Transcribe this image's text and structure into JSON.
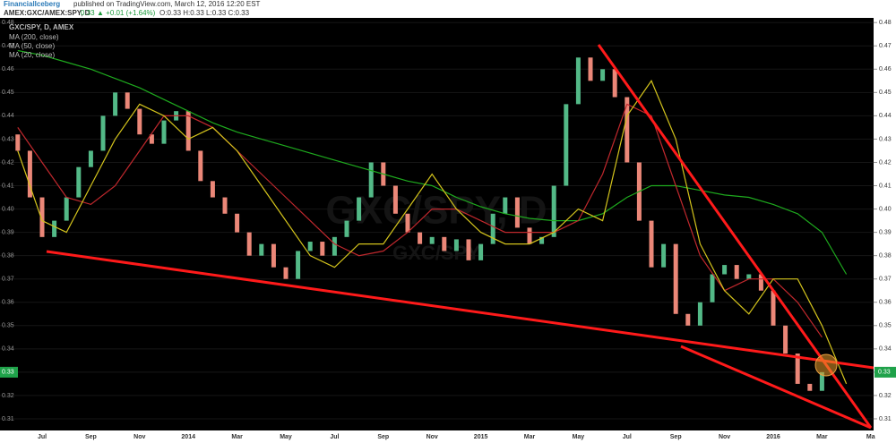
{
  "header": {
    "author": "FinancialIceberg",
    "published": "published on TradingView.com, March 12, 2016 12:20 EST",
    "symbol": "AMEX:GXC/AMEX:SPY, D",
    "last": "0.33",
    "change": "▲ +0.01 (+1.64%)",
    "ohlc": "O:0.33 H:0.33 L:0.33 C:0.33"
  },
  "chart_data": {
    "type": "candlestick",
    "title": "GXC/SPY, D, AMEX",
    "watermark": "GXC/SPY, D",
    "watermark_sub": "GXC/SPY",
    "ylim": [
      0.305,
      0.482
    ],
    "yticks": [
      0.48,
      0.47,
      0.46,
      0.45,
      0.44,
      0.43,
      0.42,
      0.41,
      {
        "value": 0.4,
        "label": "0.40"
      },
      0.39,
      0.38,
      0.37,
      0.36,
      0.35,
      0.34,
      0.33,
      0.32,
      0.31
    ],
    "x_axis_labels": [
      "Jul",
      "Sep",
      "Nov",
      "2014",
      "Mar",
      "May",
      "Jul",
      "Sep",
      "Nov",
      "2015",
      "Mar",
      "May",
      "Jul",
      "Sep",
      "Nov",
      "2016",
      "Mar",
      "Ma"
    ],
    "last_price": 0.33,
    "up_color": "#53b987",
    "down_color": "#eb8778",
    "open": [
      0.432,
      0.425,
      0.405,
      0.388,
      0.395,
      0.405,
      0.418,
      0.425,
      0.44,
      0.45,
      0.443,
      0.432,
      0.428,
      0.438,
      0.442,
      0.425,
      0.412,
      0.405,
      0.398,
      0.39,
      0.38,
      0.385,
      0.375,
      0.37,
      0.382,
      0.386,
      0.38,
      0.388,
      0.395,
      0.405,
      0.42,
      0.41,
      0.398,
      0.39,
      0.385,
      0.388,
      0.382,
      0.387,
      0.378,
      0.385,
      0.398,
      0.405,
      0.392,
      0.385,
      0.388,
      0.41,
      0.445,
      0.465,
      0.455,
      0.46,
      0.448,
      0.42,
      0.395,
      0.375,
      0.385,
      0.355,
      0.35,
      0.36,
      0.372,
      0.376,
      0.37,
      0.372,
      0.365,
      0.35,
      0.338,
      0.325,
      0.322
    ],
    "close": [
      0.425,
      0.405,
      0.388,
      0.395,
      0.405,
      0.418,
      0.425,
      0.44,
      0.45,
      0.443,
      0.432,
      0.428,
      0.438,
      0.442,
      0.425,
      0.412,
      0.405,
      0.398,
      0.39,
      0.38,
      0.385,
      0.375,
      0.37,
      0.382,
      0.386,
      0.38,
      0.388,
      0.395,
      0.405,
      0.42,
      0.41,
      0.398,
      0.39,
      0.385,
      0.388,
      0.382,
      0.387,
      0.378,
      0.385,
      0.398,
      0.405,
      0.392,
      0.385,
      0.388,
      0.41,
      0.445,
      0.465,
      0.455,
      0.46,
      0.448,
      0.42,
      0.395,
      0.375,
      0.385,
      0.355,
      0.35,
      0.36,
      0.372,
      0.376,
      0.37,
      0.372,
      0.365,
      0.35,
      0.338,
      0.325,
      0.322,
      0.33
    ],
    "series": [
      {
        "name": "MA (200, close)",
        "color": "#1eaa1e",
        "values": [
          0.468,
          0.466,
          0.463,
          0.46,
          0.456,
          0.452,
          0.447,
          0.442,
          0.437,
          0.433,
          0.43,
          0.427,
          0.424,
          0.421,
          0.418,
          0.415,
          0.412,
          0.41,
          0.405,
          0.401,
          0.398,
          0.396,
          0.395,
          0.395,
          0.398,
          0.405,
          0.41,
          0.41,
          0.408,
          0.406,
          0.405,
          0.402,
          0.398,
          0.39,
          0.372
        ]
      },
      {
        "name": "MA (50, close)",
        "color": "#c0282d",
        "values": [
          0.435,
          0.42,
          0.405,
          0.402,
          0.41,
          0.425,
          0.44,
          0.44,
          0.435,
          0.425,
          0.415,
          0.405,
          0.395,
          0.385,
          0.38,
          0.382,
          0.39,
          0.4,
          0.4,
          0.395,
          0.39,
          0.39,
          0.39,
          0.395,
          0.415,
          0.445,
          0.44,
          0.41,
          0.38,
          0.365,
          0.37,
          0.37,
          0.36,
          0.345,
          null
        ]
      },
      {
        "name": "MA (20, close)",
        "color": "#d4c41c",
        "values": [
          0.425,
          0.395,
          0.39,
          0.41,
          0.43,
          0.445,
          0.44,
          0.43,
          0.435,
          0.425,
          0.41,
          0.395,
          0.38,
          0.375,
          0.385,
          0.385,
          0.4,
          0.415,
          0.4,
          0.39,
          0.385,
          0.385,
          0.39,
          0.4,
          0.395,
          0.44,
          0.455,
          0.43,
          0.385,
          0.365,
          0.355,
          0.37,
          0.37,
          0.35,
          0.325
        ]
      }
    ]
  }
}
